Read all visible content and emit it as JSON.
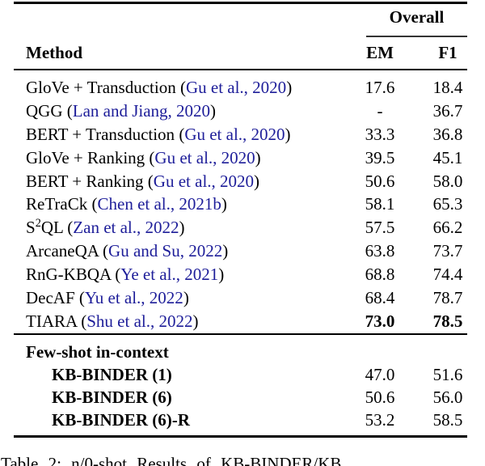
{
  "colors": {
    "citation": "#1d1d99",
    "text": "#000000",
    "background": "#ffffff"
  },
  "table": {
    "header": {
      "group": "Overall",
      "method": "Method",
      "em": "EM",
      "f1": "F1"
    },
    "rows": [
      {
        "method": "GloVe + Transduction",
        "cite": "Gu et al., 2020",
        "em": "17.6",
        "f1": "18.4"
      },
      {
        "method": "QGG",
        "cite": "Lan and Jiang, 2020",
        "em": "-",
        "f1": "36.7"
      },
      {
        "method": "BERT + Transduction",
        "cite": "Gu et al., 2020",
        "em": "33.3",
        "f1": "36.8"
      },
      {
        "method": "GloVe + Ranking",
        "cite": "Gu et al., 2020",
        "em": "39.5",
        "f1": "45.1"
      },
      {
        "method": "BERT + Ranking",
        "cite": "Gu et al., 2020",
        "em": "50.6",
        "f1": "58.0"
      },
      {
        "method": "ReTraCk",
        "cite": "Chen et al., 2021b",
        "em": "58.1",
        "f1": "65.3"
      },
      {
        "method": "S²QL",
        "cite": "Zan et al., 2022",
        "em": "57.5",
        "f1": "66.2"
      },
      {
        "method": "ArcaneQA",
        "cite": "Gu and Su, 2022",
        "em": "63.8",
        "f1": "73.7"
      },
      {
        "method": "RnG-KBQA",
        "cite": "Ye et al., 2021",
        "em": "68.8",
        "f1": "74.4"
      },
      {
        "method": "DecAF",
        "cite": "Yu et al., 2022",
        "em": "68.4",
        "f1": "78.7"
      },
      {
        "method": "TIARA",
        "cite": "Shu et al., 2022",
        "em": "73.0",
        "f1": "78.5",
        "bold_values": true
      }
    ],
    "fewshot": {
      "label": "Few-shot in-context",
      "rows": [
        {
          "method": "KB-BINDER (1)",
          "em": "47.0",
          "f1": "51.6"
        },
        {
          "method": "KB-BINDER (6)",
          "em": "50.6",
          "f1": "56.0"
        },
        {
          "method": "KB-BINDER (6)-R",
          "em": "53.2",
          "f1": "58.5"
        }
      ]
    }
  },
  "caption": "Table 2: n/0-shot Results of KB-BINDER/KB"
}
